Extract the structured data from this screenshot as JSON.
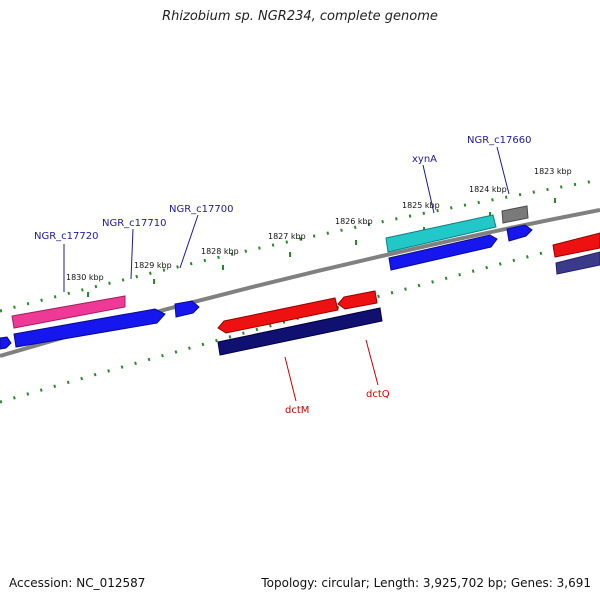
{
  "title": "Rhizobium sp. NGR234, complete genome",
  "footer": {
    "accession": "Accession: NC_012587",
    "topology": "Topology: circular; Length: 3,925,702 bp; Genes: 3,691"
  },
  "scale": {
    "labels": [
      "1830 kbp",
      "1829 kbp",
      "1828 kbp",
      "1827 kbp",
      "1826 kbp",
      "1825 kbp",
      "1824 kbp",
      "1823 kbp"
    ]
  },
  "genes": {
    "labels": [
      "NGR_c17720",
      "NGR_c17710",
      "NGR_c17700",
      "xynA",
      "NGR_c17660",
      "dctM",
      "dctQ"
    ]
  },
  "colors": {
    "backbone": "#808080",
    "tick": "#2a8a2a",
    "forward_label": "#1a1aa0",
    "reverse_label": "#cc0000",
    "pink": "#ee3a96",
    "blue": "#1616ee",
    "cyan": "#22c8c8",
    "gray": "#7a7a7a",
    "red": "#ee1111",
    "navy": "#101070",
    "slate": "#3a3a88"
  }
}
